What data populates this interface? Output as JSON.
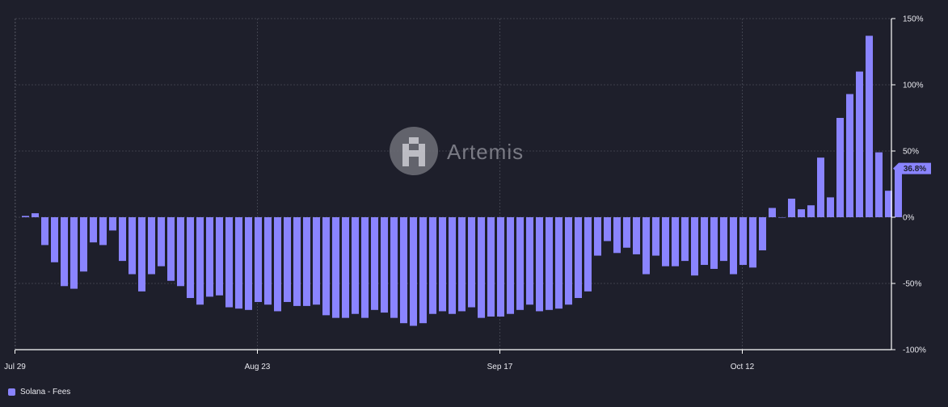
{
  "watermark": {
    "text": "Artemis"
  },
  "legend": {
    "label": "Solana - Fees"
  },
  "colors": {
    "bar": "#8a84ff",
    "background": "#1e1f2b",
    "grid": "#4a4b57",
    "axis": "#ffffff"
  },
  "chart_data": {
    "type": "bar",
    "title": "",
    "xlabel": "",
    "ylabel": "",
    "ylim": [
      -100,
      150
    ],
    "y_axis_position": "right",
    "y_ticks": [
      150,
      100,
      50,
      0,
      -50,
      -100
    ],
    "y_tick_labels": [
      "150%",
      "100%",
      "50%",
      "0%",
      "-50%",
      "-100%"
    ],
    "x_tick_labels": [
      "Jul 29",
      "Aug 23",
      "Sep 17",
      "Oct 12"
    ],
    "x_tick_index": [
      0,
      25,
      50,
      75
    ],
    "grid": true,
    "last_value_label": "36.8%",
    "series": [
      {
        "name": "Solana - Fees",
        "values": [
          1,
          3,
          -21,
          -34,
          -52,
          -54,
          -41,
          -19,
          -21,
          -10,
          -33,
          -43,
          -56,
          -43,
          -37,
          -48,
          -52,
          -61,
          -66,
          -60,
          -59,
          -68,
          -69,
          -70,
          -64,
          -66,
          -71,
          -64,
          -67,
          -67,
          -66,
          -74,
          -76,
          -76,
          -73,
          -76,
          -70,
          -72,
          -76,
          -80,
          -82,
          -80,
          -73,
          -71,
          -73,
          -71,
          -68,
          -76,
          -75,
          -75,
          -73,
          -70,
          -66,
          -71,
          -70,
          -69,
          -66,
          -61,
          -56,
          -29,
          -18,
          -27,
          -23,
          -28,
          -43,
          -29,
          -37,
          -37,
          -33,
          -44,
          -36,
          -39,
          -33,
          -43,
          -36,
          -38,
          -25,
          7,
          0,
          14,
          6,
          9,
          45,
          15,
          75,
          93,
          110,
          137,
          49,
          20,
          36.8
        ]
      }
    ]
  }
}
